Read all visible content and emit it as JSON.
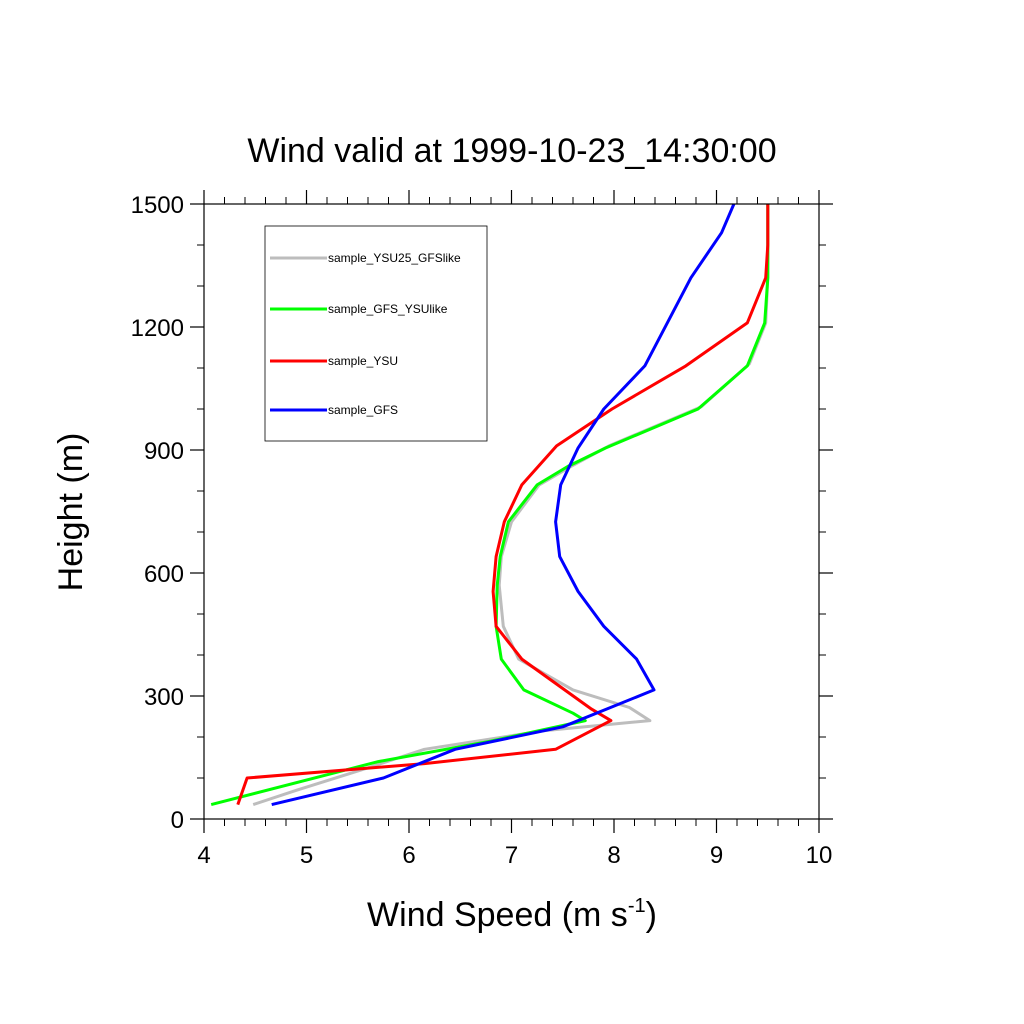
{
  "chart_data": {
    "type": "line",
    "title": "Wind valid at 1999-10-23_14:30:00",
    "xlabel": "Wind Speed (m s",
    "xlabel_sup": "-1",
    "xlabel_tail": ")",
    "ylabel": "Height (m)",
    "xlim": [
      4,
      10
    ],
    "ylim": [
      0,
      1500
    ],
    "xticks": [
      4,
      5,
      6,
      7,
      8,
      9,
      10
    ],
    "yticks": [
      0,
      300,
      600,
      900,
      1200,
      1500
    ],
    "xminor_step": 0.2,
    "yminor_step": 100,
    "grid": false,
    "legend_position": "top-left (inside plot)",
    "series": [
      {
        "name": "sample_YSU25_GFSlike",
        "color": "#bdbdbd",
        "points": [
          [
            4.48,
            35
          ],
          [
            4.9,
            70
          ],
          [
            5.6,
            125
          ],
          [
            6.15,
            170
          ],
          [
            7.3,
            215
          ],
          [
            8.35,
            240
          ],
          [
            8.15,
            272
          ],
          [
            7.6,
            315
          ],
          [
            7.07,
            390
          ],
          [
            6.92,
            470
          ],
          [
            6.88,
            570
          ],
          [
            6.9,
            640
          ],
          [
            7.0,
            725
          ],
          [
            7.27,
            815
          ],
          [
            7.58,
            860
          ],
          [
            7.95,
            910
          ],
          [
            8.85,
            1005
          ],
          [
            9.32,
            1110
          ],
          [
            9.48,
            1210
          ],
          [
            9.5,
            1320
          ],
          [
            9.5,
            1400
          ],
          [
            9.5,
            1500
          ]
        ]
      },
      {
        "name": "sample_GFS_YSUlike",
        "color": "#00ff00",
        "points": [
          [
            4.07,
            35
          ],
          [
            5.7,
            140
          ],
          [
            6.8,
            190
          ],
          [
            7.72,
            240
          ],
          [
            7.6,
            258
          ],
          [
            7.12,
            315
          ],
          [
            6.9,
            390
          ],
          [
            6.85,
            470
          ],
          [
            6.86,
            570
          ],
          [
            6.89,
            640
          ],
          [
            6.97,
            725
          ],
          [
            7.25,
            815
          ],
          [
            7.55,
            860
          ],
          [
            7.92,
            905
          ],
          [
            8.82,
            1000
          ],
          [
            9.3,
            1105
          ],
          [
            9.47,
            1210
          ],
          [
            9.5,
            1320
          ],
          [
            9.5,
            1400
          ],
          [
            9.5,
            1500
          ]
        ]
      },
      {
        "name": "sample_YSU",
        "color": "#ff0000",
        "points": [
          [
            4.33,
            35
          ],
          [
            4.42,
            100
          ],
          [
            6.15,
            135
          ],
          [
            7.43,
            170
          ],
          [
            7.97,
            240
          ],
          [
            7.78,
            268
          ],
          [
            7.1,
            390
          ],
          [
            6.85,
            470
          ],
          [
            6.82,
            555
          ],
          [
            6.85,
            640
          ],
          [
            6.93,
            725
          ],
          [
            7.1,
            815
          ],
          [
            7.44,
            910
          ],
          [
            7.98,
            1000
          ],
          [
            8.7,
            1105
          ],
          [
            9.3,
            1210
          ],
          [
            9.48,
            1320
          ],
          [
            9.5,
            1400
          ],
          [
            9.5,
            1500
          ]
        ]
      },
      {
        "name": "sample_GFS",
        "color": "#0000ff",
        "points": [
          [
            4.66,
            35
          ],
          [
            5.75,
            100
          ],
          [
            6.45,
            170
          ],
          [
            7.5,
            225
          ],
          [
            8.39,
            315
          ],
          [
            8.22,
            390
          ],
          [
            7.9,
            470
          ],
          [
            7.65,
            555
          ],
          [
            7.47,
            640
          ],
          [
            7.43,
            725
          ],
          [
            7.48,
            815
          ],
          [
            7.65,
            905
          ],
          [
            7.9,
            1000
          ],
          [
            8.3,
            1105
          ],
          [
            8.75,
            1320
          ],
          [
            9.05,
            1430
          ],
          [
            9.17,
            1500
          ]
        ]
      }
    ]
  }
}
